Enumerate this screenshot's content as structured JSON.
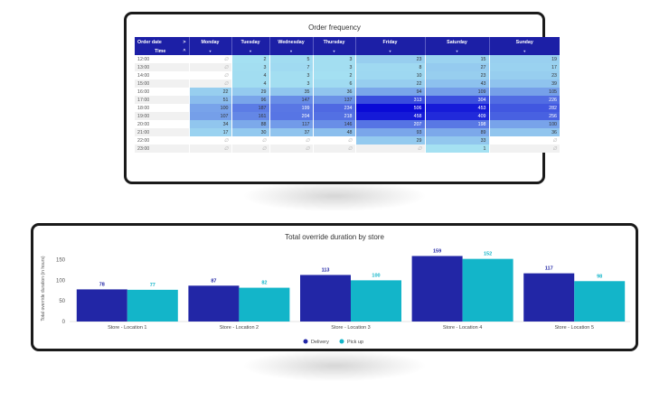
{
  "heatmap_card": {
    "title": "Order frequency",
    "row_header": "Order date",
    "col_header": "Time",
    "chevron_right": ">",
    "chevron_up": "^",
    "sort_glyph": "▾",
    "empty_glyph": "∅"
  },
  "bar_card": {
    "title": "Total override duration by store"
  },
  "colors": {
    "header": "#1c1fa6",
    "delivery": "#2226a6",
    "pickup": "#13b5c9",
    "heat_low": "#a6e3f2",
    "heat_high": "#0a0ad6"
  },
  "chart_data": [
    {
      "type": "heatmap",
      "title": "Order frequency",
      "xlabel": "Order date",
      "ylabel": "Time",
      "columns": [
        "Monday",
        "Tuesday",
        "Wednesday",
        "Thursday",
        "Friday",
        "Saturday",
        "Sunday"
      ],
      "rows": [
        "12:00",
        "13:00",
        "14:00",
        "15:00",
        "16:00",
        "17:00",
        "18:00",
        "19:00",
        "20:00",
        "21:00",
        "22:00",
        "23:00"
      ],
      "values": [
        [
          null,
          2,
          5,
          3,
          23,
          15,
          19
        ],
        [
          null,
          3,
          7,
          3,
          8,
          27,
          17
        ],
        [
          null,
          4,
          3,
          2,
          10,
          23,
          23
        ],
        [
          null,
          4,
          3,
          6,
          22,
          43,
          39
        ],
        [
          22,
          29,
          35,
          36,
          94,
          109,
          105
        ],
        [
          51,
          96,
          147,
          137,
          313,
          304,
          226
        ],
        [
          100,
          187,
          199,
          234,
          506,
          453,
          282
        ],
        [
          107,
          161,
          204,
          218,
          458,
          409,
          256
        ],
        [
          34,
          88,
          117,
          146,
          207,
          198,
          100
        ],
        [
          17,
          30,
          37,
          48,
          93,
          89,
          36
        ],
        [
          null,
          null,
          null,
          null,
          29,
          33,
          null
        ],
        [
          null,
          null,
          null,
          null,
          null,
          1,
          null
        ]
      ],
      "value_range": [
        0,
        506
      ]
    },
    {
      "type": "bar",
      "title": "Total override duration by store",
      "xlabel": "",
      "ylabel": "Total override duration (in hours)",
      "categories": [
        "Store - Location 1",
        "Store - Location 2",
        "Store - Location 3",
        "Store - Location 4",
        "Store - Location 5"
      ],
      "series": [
        {
          "name": "Delivery",
          "values": [
            78,
            87,
            113,
            159,
            117
          ]
        },
        {
          "name": "Pick up",
          "values": [
            77,
            82,
            100,
            152,
            98
          ]
        }
      ],
      "ylim": [
        0,
        160
      ],
      "yticks": [
        0,
        50,
        100,
        150
      ],
      "grid": false,
      "legend_position": "bottom-center"
    }
  ]
}
